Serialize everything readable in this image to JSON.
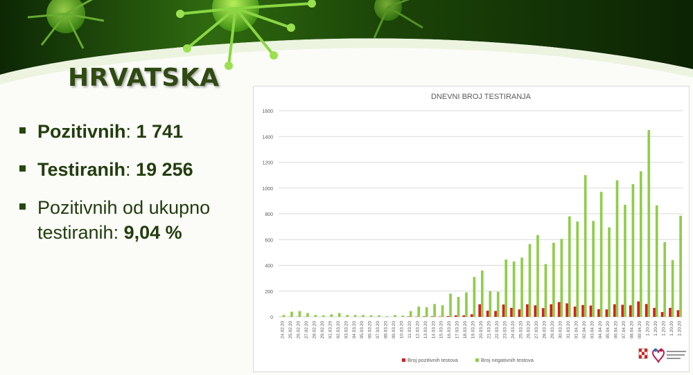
{
  "slide": {
    "title": "HRVATSKA",
    "stats": [
      {
        "label": "Pozitivnih",
        "sep": ": ",
        "value": "1 741",
        "bold_label": true
      },
      {
        "label": "Testiranih",
        "sep": ": ",
        "value": "19 256",
        "bold_label": true
      },
      {
        "label": "Pozitivnih od ukupno testiranih",
        "sep": ": ",
        "value": "9,04 %",
        "bold_label": false
      }
    ]
  },
  "colors": {
    "positive": "#d42020",
    "negative": "#8fcd4a",
    "title": "#2f4a12",
    "banner": "#1c3d08"
  },
  "logo_text": "REPUBLIKA HRVATSKA Ministarstvo zdravstva",
  "chart_data": {
    "type": "bar",
    "stacked": false,
    "title": "DNEVNI BROJ TESTIRANJA",
    "xlabel": "",
    "ylabel": "",
    "ylim": [
      0,
      1600
    ],
    "yticks": [
      0,
      200,
      400,
      600,
      800,
      1000,
      1200,
      1400,
      1600
    ],
    "grid": true,
    "legend_position": "bottom",
    "categories": [
      "24.02.20",
      "25.02.20",
      "26.02.20",
      "27.02.20",
      "28.02.20",
      "29.02.20",
      "01.03.20",
      "02.03.20",
      "03.03.20",
      "04.03.20",
      "05.03.20",
      "06.03.20",
      "07.03.20",
      "08.03.20",
      "09.03.20",
      "10.03.20",
      "11.03.20",
      "12.03.20",
      "13.03.20",
      "14.03.20",
      "15.03.20",
      "16.03.20",
      "17.03.20",
      "18.03.20",
      "19.03.20",
      "20.03.20",
      "21.03.20",
      "22.03.20",
      "23.03.20",
      "24.03.20",
      "25.03.20",
      "26.03.20",
      "27.03.20",
      "28.03.20",
      "29.03.20",
      "30.03.20",
      "31.03.20",
      "01.04.20",
      "02.04.20",
      "03.04.20",
      "04.04.20",
      "05.04.20",
      "06.04.20",
      "07.04.20",
      "08.04.20",
      "09.04.20",
      "1.20.20",
      "1.20.20",
      "1.20.20",
      "1.20.20",
      "1.20.20"
    ],
    "series": [
      {
        "name": "Broj pozitivnih testova",
        "color": "#d42020",
        "values": [
          1,
          1,
          1,
          1,
          0,
          0,
          0,
          0,
          0,
          0,
          1,
          0,
          0,
          0,
          0,
          0,
          3,
          2,
          4,
          4,
          3,
          6,
          12,
          12,
          20,
          98,
          48,
          46,
          96,
          70,
          58,
          98,
          90,
          68,
          98,
          115,
          105,
          80,
          92,
          88,
          60,
          58,
          98,
          94,
          90,
          120,
          100,
          70,
          38,
          70,
          52
        ]
      },
      {
        "name": "Broj negativnih testova",
        "color": "#8fcd4a",
        "values": [
          15,
          40,
          45,
          30,
          15,
          12,
          20,
          30,
          15,
          15,
          15,
          12,
          12,
          5,
          15,
          10,
          45,
          80,
          75,
          100,
          90,
          180,
          155,
          190,
          310,
          360,
          200,
          195,
          445,
          430,
          460,
          565,
          635,
          410,
          575,
          605,
          780,
          740,
          1100,
          745,
          970,
          695,
          1060,
          870,
          1030,
          1130,
          1450,
          865,
          580,
          440,
          785
        ]
      }
    ]
  }
}
